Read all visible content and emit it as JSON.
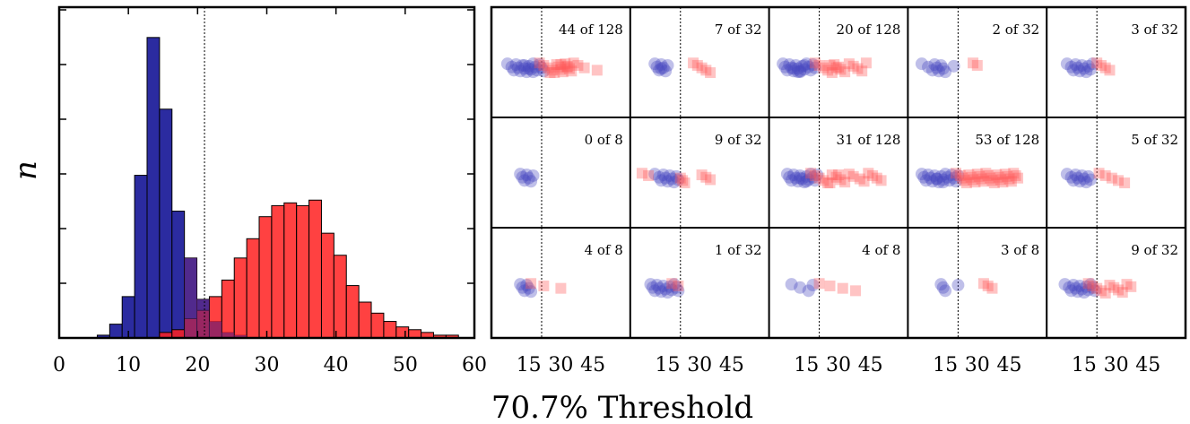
{
  "chart_data": [
    {
      "type": "histogram",
      "xlabel": "70.7% Threshold",
      "ylabel": "n",
      "xlim": [
        0,
        60
      ],
      "x_ticks": [
        "0",
        "10",
        "20",
        "30",
        "40",
        "50",
        "60"
      ],
      "threshold_line": 21,
      "bin_width": 1.8,
      "series": [
        {
          "color": "#2b2ba0",
          "bins": [
            {
              "x0": 5.5,
              "value": 0.01
            },
            {
              "x0": 7.3,
              "value": 0.05
            },
            {
              "x0": 9.1,
              "value": 0.15
            },
            {
              "x0": 10.9,
              "value": 0.59
            },
            {
              "x0": 12.7,
              "value": 1.09
            },
            {
              "x0": 14.5,
              "value": 0.83
            },
            {
              "x0": 16.3,
              "value": 0.46
            },
            {
              "x0": 18.1,
              "value": 0.29
            },
            {
              "x0": 19.9,
              "value": 0.14
            },
            {
              "x0": 21.7,
              "value": 0.06
            },
            {
              "x0": 23.5,
              "value": 0.02
            },
            {
              "x0": 25.3,
              "value": 0.01
            }
          ]
        },
        {
          "color": "#ff2020",
          "bins": [
            {
              "x0": 14.5,
              "value": 0.02
            },
            {
              "x0": 16.3,
              "value": 0.03
            },
            {
              "x0": 18.1,
              "value": 0.07
            },
            {
              "x0": 19.9,
              "value": 0.1
            },
            {
              "x0": 21.7,
              "value": 0.15
            },
            {
              "x0": 23.5,
              "value": 0.21
            },
            {
              "x0": 25.3,
              "value": 0.29
            },
            {
              "x0": 27.1,
              "value": 0.36
            },
            {
              "x0": 28.9,
              "value": 0.44
            },
            {
              "x0": 30.7,
              "value": 0.48
            },
            {
              "x0": 32.5,
              "value": 0.49
            },
            {
              "x0": 34.3,
              "value": 0.48
            },
            {
              "x0": 36.1,
              "value": 0.5
            },
            {
              "x0": 37.9,
              "value": 0.38
            },
            {
              "x0": 39.7,
              "value": 0.3
            },
            {
              "x0": 41.5,
              "value": 0.19
            },
            {
              "x0": 43.3,
              "value": 0.13
            },
            {
              "x0": 45.1,
              "value": 0.09
            },
            {
              "x0": 46.9,
              "value": 0.06
            },
            {
              "x0": 48.7,
              "value": 0.04
            },
            {
              "x0": 50.5,
              "value": 0.03
            },
            {
              "x0": 52.3,
              "value": 0.02
            },
            {
              "x0": 54.1,
              "value": 0.01
            },
            {
              "x0": 55.9,
              "value": 0.01
            }
          ]
        }
      ]
    },
    {
      "type": "scatter",
      "xlabel": "70.7% Threshold",
      "xlim": [
        0,
        60
      ],
      "x_ticks": [
        "15",
        "30",
        "45"
      ],
      "threshold_line": 21,
      "series_colors": {
        "blue": "#4848c0",
        "red": "#ff5555"
      },
      "panels": [
        {
          "label": "44 of 128",
          "blue": [
            5,
            7,
            8,
            9,
            10,
            11,
            12,
            13,
            14,
            15,
            16,
            17,
            18,
            19,
            20,
            21,
            22,
            13,
            15,
            17
          ],
          "red": [
            20,
            22,
            24,
            26,
            27,
            28,
            29,
            30,
            31,
            32,
            33,
            34,
            35,
            36,
            38,
            41,
            47,
            25,
            30,
            33
          ]
        },
        {
          "label": "7 of 32",
          "blue": [
            9,
            10,
            11,
            12,
            13,
            14,
            15,
            12
          ],
          "red": [
            27,
            29,
            31,
            33,
            35
          ]
        },
        {
          "label": "20 of 128",
          "blue": [
            4,
            5,
            6,
            7,
            8,
            9,
            10,
            11,
            12,
            13,
            14,
            15,
            16,
            17,
            18,
            19,
            12,
            14,
            9,
            11
          ],
          "red": [
            19,
            21,
            23,
            25,
            27,
            28,
            30,
            31,
            33,
            35,
            37,
            39,
            41,
            43,
            26,
            29
          ]
        },
        {
          "label": "2 of 32",
          "blue": [
            4,
            7,
            9,
            10,
            11,
            12,
            13,
            14,
            15,
            19
          ],
          "red": [
            28,
            30
          ]
        },
        {
          "label": "3 of 32",
          "blue": [
            7,
            9,
            10,
            11,
            12,
            13,
            14,
            15,
            16,
            17,
            18,
            19
          ],
          "red": [
            21,
            23,
            25,
            27
          ]
        },
        {
          "label": "0 of 8",
          "blue": [
            11,
            12,
            13,
            14,
            15,
            16,
            17
          ],
          "red": []
        },
        {
          "label": "9 of 32",
          "blue": [
            9,
            11,
            12,
            13,
            14,
            15,
            16,
            17,
            18,
            19,
            20
          ],
          "red": [
            3,
            6,
            21,
            22,
            23,
            31,
            33,
            35
          ]
        },
        {
          "label": "31 of 128",
          "blue": [
            6,
            7,
            8,
            9,
            10,
            11,
            12,
            13,
            14,
            15,
            16,
            17,
            18,
            19,
            20,
            12,
            15
          ],
          "red": [
            17,
            19,
            21,
            23,
            25,
            27,
            29,
            31,
            33,
            35,
            37,
            40,
            42,
            44,
            46,
            48,
            50,
            26,
            30
          ]
        },
        {
          "label": "53 of 128",
          "blue": [
            4,
            5,
            6,
            7,
            8,
            9,
            10,
            11,
            12,
            13,
            14,
            15,
            16,
            17,
            18,
            19,
            20,
            21,
            11,
            14
          ],
          "red": [
            20,
            22,
            23,
            24,
            25,
            26,
            27,
            28,
            29,
            30,
            31,
            32,
            33,
            34,
            35,
            36,
            37,
            38,
            39,
            40,
            41,
            42,
            43,
            44,
            45,
            46,
            47,
            48,
            49
          ]
        },
        {
          "label": "5 of 32",
          "blue": [
            7,
            9,
            10,
            11,
            12,
            13,
            14,
            15,
            16,
            17,
            18
          ],
          "red": [
            22,
            25,
            28,
            31,
            34
          ]
        },
        {
          "label": "4 of 8",
          "blue": [
            11,
            12,
            13,
            14,
            15,
            16
          ],
          "red": [
            16,
            22,
            30
          ]
        },
        {
          "label": "1 of 32",
          "blue": [
            7,
            8,
            9,
            10,
            11,
            12,
            13,
            14,
            15,
            16,
            17,
            18,
            19,
            20
          ],
          "red": [
            17,
            20
          ]
        },
        {
          "label": "4 of 8",
          "blue": [
            8,
            12,
            16,
            18
          ],
          "red": [
            21,
            26,
            32,
            38
          ]
        },
        {
          "label": "3 of 8",
          "blue": [
            13,
            14,
            15,
            21
          ],
          "red": [
            33,
            35,
            37
          ]
        },
        {
          "label": "9 of 32",
          "blue": [
            6,
            8,
            9,
            10,
            11,
            12,
            13,
            14,
            15,
            16,
            17,
            18,
            19,
            20
          ],
          "red": [
            17,
            19,
            21,
            23,
            25,
            27,
            29,
            31,
            33,
            35,
            37
          ]
        }
      ]
    }
  ]
}
